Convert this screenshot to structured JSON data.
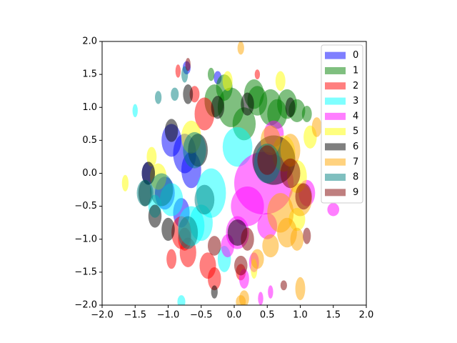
{
  "chart_data": {
    "type": "ellipse",
    "xlim": [
      -2,
      2
    ],
    "ylim": [
      -2,
      2
    ],
    "xticks": [
      {
        "value": -2,
        "label": "−2.0"
      },
      {
        "value": -1.5,
        "label": "−1.5"
      },
      {
        "value": -1,
        "label": "−1.0"
      },
      {
        "value": -0.5,
        "label": "−0.5"
      },
      {
        "value": 0,
        "label": "0.0"
      },
      {
        "value": 0.5,
        "label": "0.5"
      },
      {
        "value": 1,
        "label": "1.0"
      },
      {
        "value": 1.5,
        "label": "1.5"
      },
      {
        "value": 2,
        "label": "2.0"
      }
    ],
    "yticks": [
      {
        "value": -2,
        "label": "−2.0"
      },
      {
        "value": -1.5,
        "label": "−1.5"
      },
      {
        "value": -1,
        "label": "−1.0"
      },
      {
        "value": -0.5,
        "label": "−0.5"
      },
      {
        "value": 0,
        "label": "0.0"
      },
      {
        "value": 0.5,
        "label": "0.5"
      },
      {
        "value": 1,
        "label": "1.0"
      },
      {
        "value": 1.5,
        "label": "1.5"
      },
      {
        "value": 2,
        "label": "2.0"
      }
    ],
    "alpha": 0.5,
    "legend": "upper right",
    "series": [
      {
        "name": "0",
        "color": "#0000ff",
        "x": [
          -0.95,
          -0.75,
          -0.65,
          -1.05,
          -0.8,
          -1.3,
          -0.72,
          -0.25
        ],
        "y": [
          0.5,
          0.3,
          0.05,
          -0.3,
          -0.6,
          0.0,
          1.6,
          1.45
        ],
        "width": [
          0.3,
          0.35,
          0.3,
          0.3,
          0.25,
          0.2,
          0.12,
          0.12
        ],
        "height": [
          0.5,
          0.6,
          0.55,
          0.5,
          0.45,
          0.35,
          0.2,
          0.2
        ]
      },
      {
        "name": "1",
        "color": "#008000",
        "x": [
          -0.3,
          -0.05,
          0.15,
          0.35,
          0.55,
          0.8,
          0.95,
          -0.15,
          0.3,
          0.65,
          1.1,
          -0.35
        ],
        "y": [
          1.1,
          1.0,
          0.75,
          1.1,
          1.0,
          1.05,
          0.95,
          1.3,
          1.2,
          0.9,
          0.9,
          1.5
        ],
        "width": [
          0.3,
          0.4,
          0.35,
          0.3,
          0.35,
          0.3,
          0.25,
          0.25,
          0.3,
          0.3,
          0.15,
          0.1
        ],
        "height": [
          0.5,
          0.6,
          0.5,
          0.45,
          0.55,
          0.45,
          0.35,
          0.4,
          0.45,
          0.45,
          0.25,
          0.2
        ]
      },
      {
        "name": "2",
        "color": "#ff0000",
        "x": [
          -0.8,
          -0.7,
          -0.4,
          -0.3,
          -0.85,
          -0.45,
          0.1,
          -0.75,
          -0.95,
          -0.6,
          0.35
        ],
        "y": [
          -0.9,
          -1.2,
          -1.4,
          -1.6,
          1.55,
          0.9,
          -1.5,
          -1.0,
          -1.3,
          1.2,
          1.5
        ],
        "width": [
          0.3,
          0.25,
          0.25,
          0.2,
          0.08,
          0.3,
          0.15,
          0.2,
          0.15,
          0.15,
          0.08
        ],
        "height": [
          0.5,
          0.45,
          0.4,
          0.35,
          0.2,
          0.5,
          0.25,
          0.35,
          0.3,
          0.25,
          0.15
        ]
      },
      {
        "name": "3",
        "color": "#00ffff",
        "x": [
          0.05,
          -0.35,
          -0.65,
          -0.95,
          -0.5,
          -0.15,
          -1.2,
          -1.5,
          -0.8
        ],
        "y": [
          0.4,
          -0.3,
          -0.8,
          -0.4,
          -0.75,
          -1.3,
          -0.5,
          0.95,
          -1.95
        ],
        "width": [
          0.45,
          0.45,
          0.4,
          0.35,
          0.35,
          0.2,
          0.2,
          0.08,
          0.12
        ],
        "height": [
          0.6,
          0.75,
          0.6,
          0.5,
          0.55,
          0.4,
          0.35,
          0.2,
          0.2
        ]
      },
      {
        "name": "4",
        "color": "#ff00ff",
        "x": [
          0.45,
          0.2,
          0.05,
          0.5,
          0.15,
          0.6,
          1.1,
          1.5,
          -0.1,
          0.3,
          0.55,
          0.4
        ],
        "y": [
          -0.15,
          -0.5,
          -0.9,
          -0.8,
          -1.6,
          0.6,
          -0.3,
          -0.55,
          -1.1,
          -1.35,
          -1.8,
          -1.9
        ],
        "width": [
          0.9,
          0.5,
          0.35,
          0.3,
          0.15,
          0.3,
          0.25,
          0.18,
          0.2,
          0.15,
          0.08,
          0.08
        ],
        "height": [
          0.95,
          0.6,
          0.5,
          0.4,
          0.3,
          0.4,
          0.4,
          0.2,
          0.35,
          0.3,
          0.2,
          0.2
        ]
      },
      {
        "name": "5",
        "color": "#ffff00",
        "x": [
          0.75,
          0.95,
          -1.25,
          -1.65,
          -1.15,
          -0.1,
          0.7,
          0.95,
          1.15,
          -0.65,
          0.3
        ],
        "y": [
          0.3,
          -0.05,
          0.25,
          -0.15,
          -0.05,
          1.4,
          1.4,
          -0.7,
          0.55,
          0.55,
          -1.45
        ],
        "width": [
          0.35,
          0.3,
          0.15,
          0.1,
          0.25,
          0.15,
          0.15,
          0.25,
          0.2,
          0.3,
          0.1
        ],
        "height": [
          0.55,
          0.5,
          0.3,
          0.25,
          0.4,
          0.3,
          0.3,
          0.35,
          0.35,
          0.5,
          0.3
        ]
      },
      {
        "name": "6",
        "color": "#000000",
        "x": [
          -1.35,
          -0.55,
          -0.25,
          0.2,
          0.6,
          0.05,
          -1.0,
          -1.2,
          -0.95,
          -0.3,
          0.85,
          -1.3,
          -0.7
        ],
        "y": [
          -0.3,
          0.35,
          1.0,
          1.05,
          0.2,
          -0.9,
          -0.85,
          -0.65,
          0.65,
          -1.8,
          1.0,
          0.0,
          1.2
        ],
        "width": [
          0.2,
          0.3,
          0.2,
          0.2,
          0.65,
          0.3,
          0.2,
          0.2,
          0.2,
          0.1,
          0.15,
          0.2,
          0.15
        ],
        "height": [
          0.4,
          0.5,
          0.35,
          0.35,
          0.75,
          0.4,
          0.35,
          0.35,
          0.35,
          0.2,
          0.3,
          0.35,
          0.3
        ]
      },
      {
        "name": "7",
        "color": "#ffa500",
        "x": [
          0.7,
          0.8,
          1.0,
          0.55,
          0.35,
          1.0,
          0.15,
          0.85,
          0.1,
          1.25,
          0.55,
          0.95,
          0.1
        ],
        "y": [
          -0.6,
          -0.9,
          -0.4,
          -1.1,
          -1.3,
          -1.75,
          -1.9,
          0.35,
          1.9,
          0.7,
          0.5,
          -1.0,
          -1.95
        ],
        "width": [
          0.4,
          0.3,
          0.35,
          0.25,
          0.2,
          0.15,
          0.15,
          0.3,
          0.1,
          0.15,
          0.3,
          0.2,
          0.15
        ],
        "height": [
          0.6,
          0.45,
          0.5,
          0.35,
          0.3,
          0.35,
          0.25,
          0.5,
          0.2,
          0.3,
          0.45,
          0.35,
          0.2
        ]
      },
      {
        "name": "8",
        "color": "#008080",
        "x": [
          -1.35,
          -0.7,
          -0.45,
          -1.1,
          -0.6,
          -1.15,
          -0.9,
          0.5,
          -0.75
        ],
        "y": [
          -0.3,
          -0.9,
          -0.4,
          -0.25,
          0.35,
          1.15,
          1.2,
          0.15,
          1.5
        ],
        "width": [
          0.25,
          0.3,
          0.3,
          0.35,
          0.35,
          0.1,
          0.12,
          0.4,
          0.1
        ],
        "height": [
          0.4,
          0.5,
          0.45,
          0.5,
          0.55,
          0.2,
          0.2,
          0.6,
          0.25
        ]
      },
      {
        "name": "9",
        "color": "#800000",
        "x": [
          0.85,
          1.05,
          0.5,
          0.2,
          -0.3,
          0.1,
          1.1,
          0.75,
          -0.7
        ],
        "y": [
          0.0,
          -0.35,
          0.2,
          -1.0,
          -1.1,
          -1.4,
          -0.95,
          -1.7,
          1.65
        ],
        "width": [
          0.3,
          0.25,
          0.3,
          0.2,
          0.2,
          0.2,
          0.12,
          0.1,
          0.08
        ],
        "height": [
          0.45,
          0.4,
          0.45,
          0.35,
          0.3,
          0.3,
          0.25,
          0.15,
          0.2
        ]
      }
    ]
  }
}
